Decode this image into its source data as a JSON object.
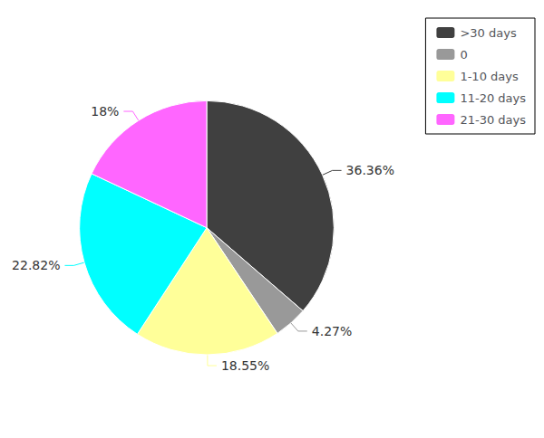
{
  "chart_data": {
    "type": "pie",
    "categories": [
      ">30 days",
      "0",
      "1-10 days",
      "11-20 days",
      "21-30 days"
    ],
    "values": [
      36.36,
      4.27,
      18.55,
      22.82,
      18
    ],
    "value_labels": [
      "36.36%",
      "4.27%",
      "18.55%",
      "22.82%",
      "18%"
    ],
    "colors": [
      "#404040",
      "#999999",
      "#ffff99",
      "#00ffff",
      "#ff66ff"
    ],
    "data_labels": true,
    "legend": "upper right"
  }
}
